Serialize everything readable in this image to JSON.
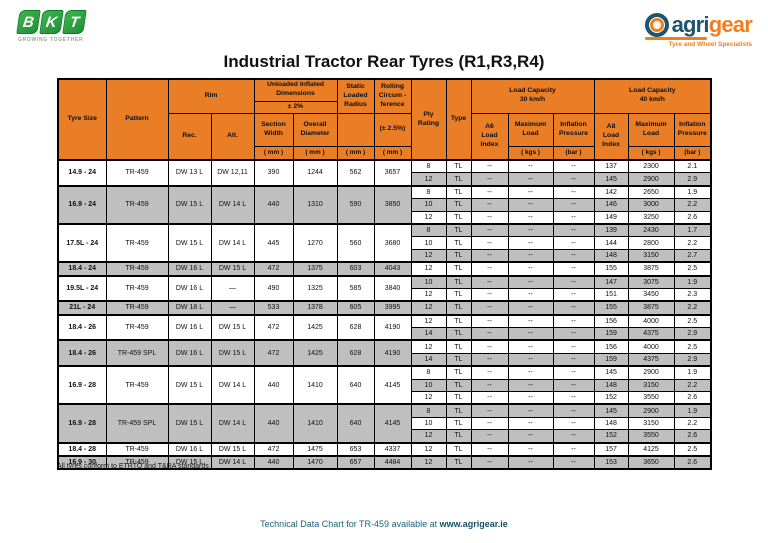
{
  "brand": {
    "bkt_letters": [
      "B",
      "K",
      "T"
    ],
    "bkt_tagline": "GROWING TOGETHER",
    "agrigear_left": "agri",
    "agrigear_right": "gear",
    "agrigear_tagline": "Tyre and Wheel Specialists"
  },
  "colors": {
    "header_orange": "#e97e26",
    "row_gray": "#bfbfbf",
    "bkt_green": "#2ba23c",
    "agrigear_navy": "#1c556e",
    "agrigear_orange": "#ef7e1e",
    "footer_teal": "#1a637c"
  },
  "page": {
    "title": "Industrial Tractor Rear Tyres (R1,R3,R4)",
    "note": "All tyres conform to ETRTO and T&RA standards",
    "footer_text": "Technical Data Chart for TR-459 available at ",
    "footer_link": "www.agrigear.ie"
  },
  "table": {
    "header": {
      "tyre_size": "Tyre Size",
      "pattern": "Pattern",
      "rim": "Rim",
      "rec": "Rec.",
      "alt": "Alt.",
      "dims": "Unloaded Inflated\nDimensions",
      "dims_tol": "± 2%",
      "section_width": "Section\nWidth",
      "overall_diameter": "Overall\nDiameter",
      "static_loaded_radius": "Static\nLoaded\nRadius",
      "rolling_circumference": "Rolling\nCircum -\nference",
      "rolling_tol": "(± 2.5%)",
      "ply_rating": "Ply\nRating",
      "type": "Type",
      "load_capacity_30": "Load  Capacity\n30 km/h",
      "load_capacity_40": "Load  Capacity\n40 km/h",
      "li_30": "A6\nLoad\nIndex",
      "li_40": "A8\nLoad\nIndex",
      "maximum_load": "Maximum\nLoad",
      "inflation_pressure": "Inflation\nPressure",
      "unit_mm": "( mm )",
      "unit_kgs": "( kgs )",
      "unit_bar": "(bar )"
    },
    "groups": [
      {
        "size": "14.9 - 24",
        "pattern": "TR-459",
        "rec": "DW 13 L",
        "alt": "DW 12,11",
        "section_width": "390",
        "overall_diameter": "1244",
        "static_radius": "562",
        "rolling_circ": "3657",
        "rows": [
          {
            "ply": "8",
            "type": "TL",
            "li30": "--",
            "load30": "--",
            "inf30": "--",
            "li40": "137",
            "load40": "2300",
            "inf40": "2.1"
          },
          {
            "ply": "12",
            "type": "TL",
            "li30": "--",
            "load30": "--",
            "inf30": "--",
            "li40": "145",
            "load40": "2900",
            "inf40": "2.9"
          }
        ]
      },
      {
        "size": "16.9 - 24",
        "pattern": "TR-459",
        "rec": "DW 15 L",
        "alt": "DW 14 L",
        "section_width": "440",
        "overall_diameter": "1310",
        "static_radius": "590",
        "rolling_circ": "3850",
        "rows": [
          {
            "ply": "8",
            "type": "TL",
            "li30": "--",
            "load30": "--",
            "inf30": "--",
            "li40": "142",
            "load40": "2650",
            "inf40": "1.9"
          },
          {
            "ply": "10",
            "type": "TL",
            "li30": "--",
            "load30": "--",
            "inf30": "--",
            "li40": "146",
            "load40": "3000",
            "inf40": "2.2"
          },
          {
            "ply": "12",
            "type": "TL",
            "li30": "--",
            "load30": "--",
            "inf30": "--",
            "li40": "149",
            "load40": "3250",
            "inf40": "2.6"
          }
        ]
      },
      {
        "size": "17.5L - 24",
        "pattern": "TR-459",
        "rec": "DW 15 L",
        "alt": "DW 14 L",
        "section_width": "445",
        "overall_diameter": "1270",
        "static_radius": "560",
        "rolling_circ": "3680",
        "rows": [
          {
            "ply": "8",
            "type": "TL",
            "li30": "--",
            "load30": "--",
            "inf30": "--",
            "li40": "139",
            "load40": "2430",
            "inf40": "1.7"
          },
          {
            "ply": "10",
            "type": "TL",
            "li30": "--",
            "load30": "--",
            "inf30": "--",
            "li40": "144",
            "load40": "2800",
            "inf40": "2.2"
          },
          {
            "ply": "12",
            "type": "TL",
            "li30": "--",
            "load30": "--",
            "inf30": "--",
            "li40": "148",
            "load40": "3150",
            "inf40": "2.7"
          }
        ]
      },
      {
        "size": "18.4 - 24",
        "pattern": "TR-459",
        "rec": "DW 16 L",
        "alt": "DW 15 L",
        "section_width": "472",
        "overall_diameter": "1375",
        "static_radius": "603",
        "rolling_circ": "4043",
        "rows": [
          {
            "ply": "12",
            "type": "TL",
            "li30": "--",
            "load30": "--",
            "inf30": "--",
            "li40": "155",
            "load40": "3875",
            "inf40": "2.5"
          }
        ]
      },
      {
        "size": "19.5L - 24",
        "pattern": "TR-459",
        "rec": "DW 16 L",
        "alt": "—",
        "section_width": "490",
        "overall_diameter": "1325",
        "static_radius": "585",
        "rolling_circ": "3840",
        "rows": [
          {
            "ply": "10",
            "type": "TL",
            "li30": "--",
            "load30": "--",
            "inf30": "--",
            "li40": "147",
            "load40": "3075",
            "inf40": "1.9"
          },
          {
            "ply": "12",
            "type": "TL",
            "li30": "--",
            "load30": "--",
            "inf30": "--",
            "li40": "151",
            "load40": "3450",
            "inf40": "2.3"
          }
        ]
      },
      {
        "size": "21L - 24",
        "pattern": "TR-459",
        "rec": "DW 18 L",
        "alt": "—",
        "section_width": "533",
        "overall_diameter": "1378",
        "static_radius": "605",
        "rolling_circ": "3995",
        "rows": [
          {
            "ply": "12",
            "type": "TL",
            "li30": "--",
            "load30": "--",
            "inf30": "--",
            "li40": "155",
            "load40": "3875",
            "inf40": "2.2"
          }
        ]
      },
      {
        "size": "18.4 - 26",
        "pattern": "TR-459",
        "rec": "DW 16 L",
        "alt": "DW 15 L",
        "section_width": "472",
        "overall_diameter": "1425",
        "static_radius": "628",
        "rolling_circ": "4190",
        "rows": [
          {
            "ply": "12",
            "type": "TL",
            "li30": "--",
            "load30": "--",
            "inf30": "--",
            "li40": "156",
            "load40": "4000",
            "inf40": "2.5"
          },
          {
            "ply": "14",
            "type": "TL",
            "li30": "--",
            "load30": "--",
            "inf30": "--",
            "li40": "159",
            "load40": "4375",
            "inf40": "2.9"
          }
        ]
      },
      {
        "size": "18.4 - 26",
        "pattern": "TR-459 SPL",
        "rec": "DW 16 L",
        "alt": "DW 15 L",
        "section_width": "472",
        "overall_diameter": "1425",
        "static_radius": "628",
        "rolling_circ": "4190",
        "rows": [
          {
            "ply": "12",
            "type": "TL",
            "li30": "--",
            "load30": "--",
            "inf30": "--",
            "li40": "156",
            "load40": "4000",
            "inf40": "2.5"
          },
          {
            "ply": "14",
            "type": "TL",
            "li30": "--",
            "load30": "--",
            "inf30": "--",
            "li40": "159",
            "load40": "4375",
            "inf40": "2.9"
          }
        ]
      },
      {
        "size": "16.9 - 28",
        "pattern": "TR-459",
        "rec": "DW 15 L",
        "alt": "DW 14 L",
        "section_width": "440",
        "overall_diameter": "1410",
        "static_radius": "640",
        "rolling_circ": "4145",
        "rows": [
          {
            "ply": "8",
            "type": "TL",
            "li30": "--",
            "load30": "--",
            "inf30": "--",
            "li40": "145",
            "load40": "2900",
            "inf40": "1.9"
          },
          {
            "ply": "10",
            "type": "TL",
            "li30": "--",
            "load30": "--",
            "inf30": "--",
            "li40": "148",
            "load40": "3150",
            "inf40": "2.2"
          },
          {
            "ply": "12",
            "type": "TL",
            "li30": "--",
            "load30": "--",
            "inf30": "--",
            "li40": "152",
            "load40": "3550",
            "inf40": "2.6"
          }
        ]
      },
      {
        "size": "16.9 - 28",
        "pattern": "TR-459 SPL",
        "rec": "DW 15 L",
        "alt": "DW 14 L",
        "section_width": "440",
        "overall_diameter": "1410",
        "static_radius": "640",
        "rolling_circ": "4145",
        "rows": [
          {
            "ply": "8",
            "type": "TL",
            "li30": "--",
            "load30": "--",
            "inf30": "--",
            "li40": "145",
            "load40": "2900",
            "inf40": "1.9"
          },
          {
            "ply": "10",
            "type": "TL",
            "li30": "--",
            "load30": "--",
            "inf30": "--",
            "li40": "148",
            "load40": "3150",
            "inf40": "2.2"
          },
          {
            "ply": "12",
            "type": "TL",
            "li30": "--",
            "load30": "--",
            "inf30": "--",
            "li40": "152",
            "load40": "3550",
            "inf40": "2.6"
          }
        ]
      },
      {
        "size": "18.4 - 28",
        "pattern": "TR-459",
        "rec": "DW 16 L",
        "alt": "DW 15 L",
        "section_width": "472",
        "overall_diameter": "1475",
        "static_radius": "653",
        "rolling_circ": "4337",
        "rows": [
          {
            "ply": "12",
            "type": "TL",
            "li30": "--",
            "load30": "--",
            "inf30": "--",
            "li40": "157",
            "load40": "4125",
            "inf40": "2.5"
          }
        ]
      },
      {
        "size": "16.9 - 30",
        "pattern": "TR-459",
        "rec": "DW 15 L",
        "alt": "DW 14 L",
        "section_width": "440",
        "overall_diameter": "1470",
        "static_radius": "657",
        "rolling_circ": "4484",
        "rows": [
          {
            "ply": "12",
            "type": "TL",
            "li30": "--",
            "load30": "--",
            "inf30": "--",
            "li40": "153",
            "load40": "3650",
            "inf40": "2.6"
          }
        ]
      }
    ]
  }
}
